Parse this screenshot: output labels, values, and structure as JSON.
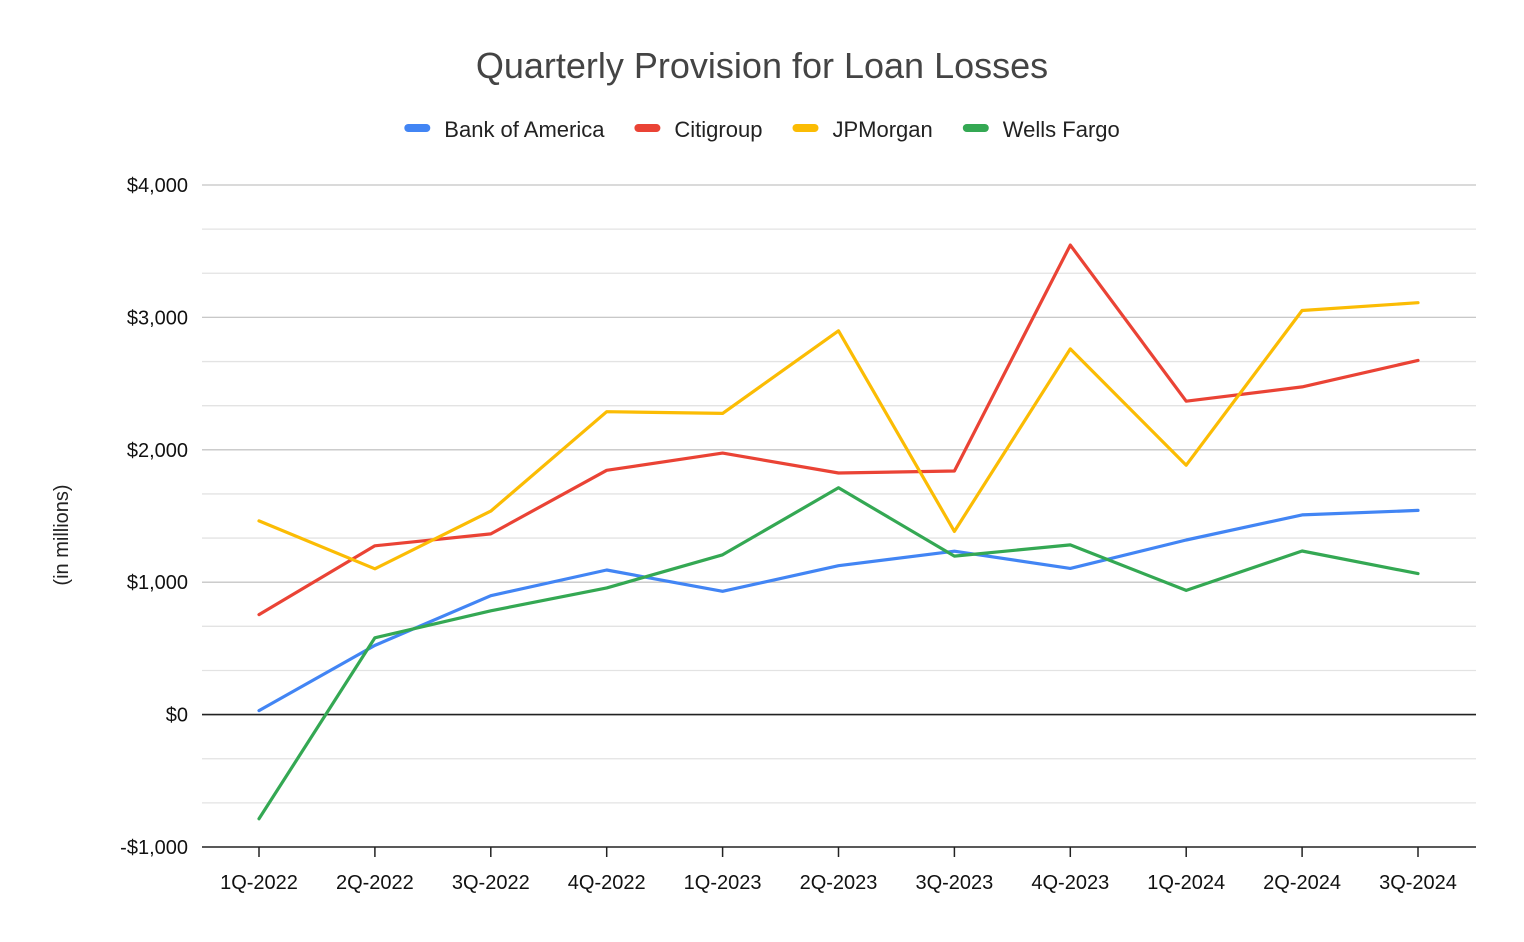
{
  "chart_data": {
    "type": "line",
    "title": "Quarterly Provision for Loan Losses",
    "xlabel": "",
    "ylabel": "(in millions)",
    "categories": [
      "1Q-2022",
      "2Q-2022",
      "3Q-2022",
      "4Q-2022",
      "1Q-2023",
      "2Q-2023",
      "3Q-2023",
      "4Q-2023",
      "1Q-2024",
      "2Q-2024",
      "3Q-2024"
    ],
    "ylim": [
      -1000,
      4000
    ],
    "yticks": [
      {
        "value": -1000,
        "label": "-$1,000"
      },
      {
        "value": 0,
        "label": "$0"
      },
      {
        "value": 1000,
        "label": "$1,000"
      },
      {
        "value": 2000,
        "label": "$2,000"
      },
      {
        "value": 3000,
        "label": "$3,000"
      },
      {
        "value": 4000,
        "label": "$4,000"
      }
    ],
    "minor_grid_step": 333.33,
    "grid": true,
    "legend_position": "top",
    "series": [
      {
        "name": "Bank of America",
        "color": "#4285F4",
        "values": [
          30,
          523,
          898,
          1092,
          931,
          1125,
          1234,
          1104,
          1319,
          1508,
          1542
        ]
      },
      {
        "name": "Citigroup",
        "color": "#EA4335",
        "values": [
          755,
          1275,
          1365,
          1845,
          1975,
          1825,
          1840,
          3546,
          2367,
          2475,
          2675
        ]
      },
      {
        "name": "JPMorgan",
        "color": "#FBBC04",
        "values": [
          1463,
          1101,
          1537,
          2288,
          2275,
          2899,
          1384,
          2762,
          1884,
          3052,
          3111
        ]
      },
      {
        "name": "Wells Fargo",
        "color": "#34A853",
        "values": [
          -787,
          580,
          784,
          957,
          1207,
          1713,
          1197,
          1282,
          938,
          1236,
          1065
        ]
      }
    ]
  }
}
